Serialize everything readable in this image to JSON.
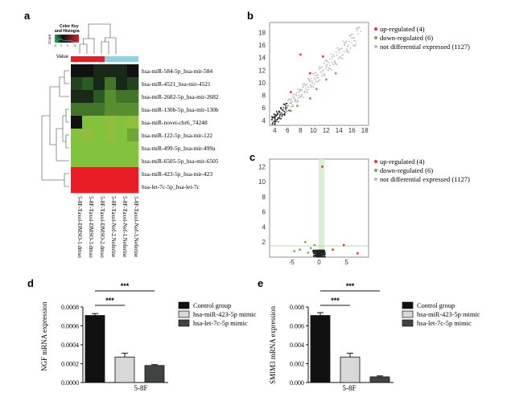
{
  "panel_labels": {
    "a": "a",
    "b": "b",
    "c": "c",
    "d": "d",
    "e": "e"
  },
  "chart_data": [
    {
      "panel": "a",
      "type": "heatmap",
      "color_key": {
        "title_line1": "Color Key",
        "title_line2": "and Histogra",
        "axis_label": "Count",
        "value_label": "Value",
        "ticks": [
          "-5",
          "0",
          "5",
          "10"
        ]
      },
      "rows": [
        "hsa-miR-584-5p_hsa-mir-584",
        "hsa-miR-4521_hsa-mir-4521",
        "hsa-miR-2682-5p_hsa-mir-2682",
        "hsa-miR-130b-5p_hsa-mir-130b",
        "hsa-miR-novei-chr6_74248",
        "hsa-miR-122-5p_hsa-mir-122",
        "hsa-miR-499-5p_hsa-mir-499a",
        "hsa-miR-6505-5p_hsa-mir-6505",
        "hsa-miR-423-5p_hsa-mir-423",
        "hsa-let-7c-5p_hsa-let-7c"
      ],
      "columns": [
        "5-8F-Taxol-DMSO-1.dmso",
        "5-8F-Taxol-DMSO-3.dmso",
        "5-8F-Taxol-DMSO-2.dmso",
        "5-8F-Taxol-Nef-2.Neferine",
        "5-8F-Taxol-Nef-1.Neferine",
        "5-8F-Taxol-Nef-3.Neferine"
      ],
      "column_groups": [
        {
          "name": "DMSO",
          "color": "#e0212a"
        },
        {
          "name": "Neferine",
          "color": "#8ed3df"
        }
      ],
      "values": [
        [
          -5,
          -5,
          -4,
          -4,
          -4,
          -5
        ],
        [
          -3,
          -2,
          -4,
          -1,
          -4,
          -3
        ],
        [
          -4,
          -4,
          -2,
          0,
          -1,
          -1
        ],
        [
          -1,
          -1,
          -1,
          0,
          0,
          0
        ],
        [
          -5,
          2,
          2,
          3,
          2,
          3
        ],
        [
          2,
          3,
          2,
          3,
          2,
          1
        ],
        [
          2,
          2,
          2,
          2,
          2,
          2
        ],
        [
          2,
          2,
          2,
          2,
          2,
          2
        ],
        [
          10,
          10,
          10,
          10,
          10,
          10
        ],
        [
          10,
          10,
          10,
          10,
          10,
          10
        ]
      ],
      "vmin": -5,
      "vmax": 10
    },
    {
      "panel": "b",
      "type": "scatter",
      "x_ticks": [
        4,
        6,
        8,
        10,
        12,
        14,
        16,
        18
      ],
      "y_ticks": [
        4,
        6,
        8,
        10,
        12,
        14,
        16,
        18
      ],
      "xlim": [
        3.2,
        18.6
      ],
      "ylim": [
        3.2,
        19.6
      ],
      "legend": [
        {
          "label": "up-regulated (4)",
          "color": "#e8333a"
        },
        {
          "label": "down-regulated (6)",
          "color": "#6ab04c"
        },
        {
          "label": "not differential expressed (1127)",
          "color": "#bbbbbb"
        }
      ],
      "up_points": [
        [
          6.5,
          8.5
        ],
        [
          9.5,
          11.5
        ],
        [
          11.5,
          14.2
        ],
        [
          8.0,
          14.5
        ]
      ],
      "down_points": [
        [
          6.5,
          5.5
        ],
        [
          7.5,
          6.3
        ],
        [
          9.5,
          7.5
        ],
        [
          10.5,
          9.0
        ],
        [
          12.0,
          10.5
        ],
        [
          13.5,
          11.5
        ]
      ]
    },
    {
      "panel": "c",
      "type": "scatter",
      "x_ticks": [
        -5,
        0,
        5
      ],
      "y_ticks": [
        2,
        4,
        6,
        8,
        10,
        12
      ],
      "xlim": [
        -9,
        9
      ],
      "ylim": [
        0,
        13
      ],
      "legend": [
        {
          "label": "up-regulated (4)",
          "color": "#e8333a"
        },
        {
          "label": "down-regulated (6)",
          "color": "#6ab04c"
        },
        {
          "label": "not differential expressed (1127)",
          "color": "#bbbbbb"
        }
      ],
      "up_points": [
        [
          4.5,
          1.6
        ],
        [
          7.0,
          0.5
        ],
        [
          2.5,
          1.0
        ],
        [
          0.6,
          12.0
        ]
      ],
      "down_points": [
        [
          -2.5,
          2.0
        ],
        [
          -3.5,
          1.0
        ],
        [
          -1.5,
          1.2
        ],
        [
          -4.5,
          0.8
        ],
        [
          -0.8,
          1.6
        ],
        [
          -2.0,
          0.6
        ]
      ]
    },
    {
      "panel": "d",
      "type": "bar",
      "ylabel": "NGF mRNA expression",
      "xlabel": "5-8F",
      "y_ticks": [
        "0.0000",
        "0.0002",
        "0.0004",
        "0.0006",
        "0.0008"
      ],
      "ylim": [
        0,
        0.0008
      ],
      "series": [
        {
          "name": "Control group",
          "value": 0.00071,
          "error": 2e-05,
          "color": "#111111"
        },
        {
          "name": "hsa-miR-423-5p mimic",
          "value": 0.00027,
          "error": 4e-05,
          "color": "#d8d8d8"
        },
        {
          "name": "hsa-let-7c-5p mimic",
          "value": 0.00018,
          "error": 1e-05,
          "color": "#3f4443"
        }
      ],
      "significance": [
        "***",
        "***"
      ]
    },
    {
      "panel": "e",
      "type": "bar",
      "ylabel": "SMIM3 mRNA expression",
      "xlabel": "5-8F",
      "y_ticks": [
        "0.000",
        "0.002",
        "0.004",
        "0.006",
        "0.008"
      ],
      "ylim": [
        0,
        0.008
      ],
      "series": [
        {
          "name": "Control group",
          "value": 0.0071,
          "error": 0.0003,
          "color": "#111111"
        },
        {
          "name": "hsa-miR-423-5p mimic",
          "value": 0.0027,
          "error": 0.0004,
          "color": "#d8d8d8"
        },
        {
          "name": "hsa-let-7c-5p mimic",
          "value": 0.0006,
          "error": 0.0001,
          "color": "#3f4443"
        }
      ],
      "significance": [
        "***",
        "***"
      ]
    }
  ]
}
